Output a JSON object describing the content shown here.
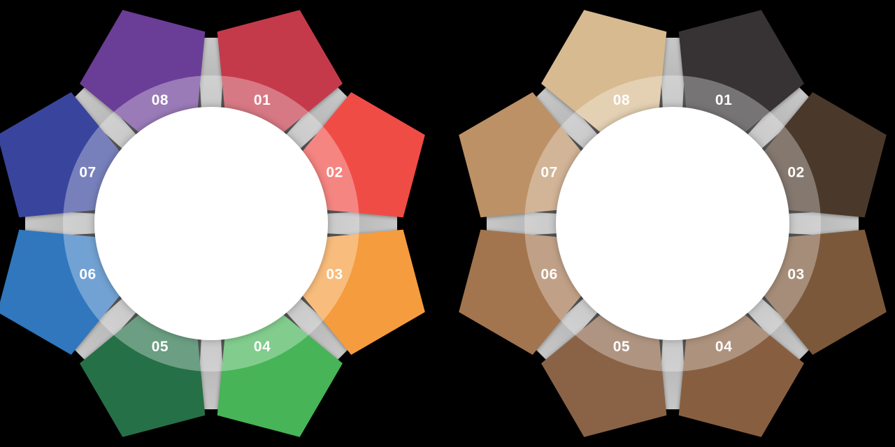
{
  "background_color": "#000000",
  "diagrams": [
    {
      "name": "color-process-wheel",
      "side": "left",
      "connector_color_inner": "#A9A9A9",
      "connector_color_outer": "#C7C7C7",
      "center_color": "#FFFFFF",
      "ring_tint_color": "#FFFFFF",
      "ring_tint_opacity": 0.32,
      "segments": [
        {
          "label": "01",
          "color": "#C53A4A"
        },
        {
          "label": "02",
          "color": "#F04C46"
        },
        {
          "label": "03",
          "color": "#F59C3F"
        },
        {
          "label": "04",
          "color": "#47B457"
        },
        {
          "label": "05",
          "color": "#267047"
        },
        {
          "label": "06",
          "color": "#3077BE"
        },
        {
          "label": "07",
          "color": "#39459C"
        },
        {
          "label": "08",
          "color": "#6A3D97"
        }
      ]
    },
    {
      "name": "sepia-process-wheel",
      "side": "right",
      "connector_color_inner": "#A9A9A9",
      "connector_color_outer": "#C7C7C7",
      "center_color": "#FFFFFF",
      "ring_tint_color": "#FFFFFF",
      "ring_tint_opacity": 0.32,
      "segments": [
        {
          "label": "01",
          "color": "#373334"
        },
        {
          "label": "02",
          "color": "#4A392B"
        },
        {
          "label": "03",
          "color": "#7B583A"
        },
        {
          "label": "04",
          "color": "#875F40"
        },
        {
          "label": "05",
          "color": "#8A6346"
        },
        {
          "label": "06",
          "color": "#A2754E"
        },
        {
          "label": "07",
          "color": "#BD9166"
        },
        {
          "label": "08",
          "color": "#D7BA90"
        }
      ]
    }
  ]
}
